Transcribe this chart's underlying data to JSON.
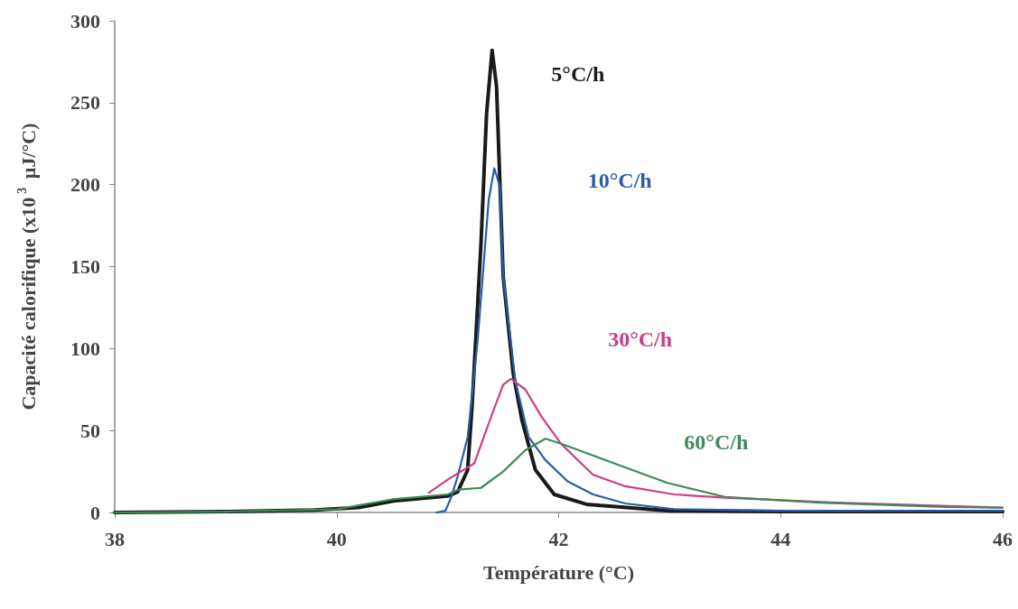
{
  "chart_data": {
    "type": "line",
    "xlabel": "Température (°C)",
    "ylabel": "Capacité calorifique (x10$^{3}$ µJ/°C)",
    "xlim": [
      38,
      46
    ],
    "xticks": [
      38,
      40,
      42,
      44,
      46
    ],
    "ylim": [
      0,
      300
    ],
    "yticks": [
      0,
      50,
      100,
      150,
      200,
      250,
      300
    ],
    "grid": false,
    "legend": false,
    "marker": "none",
    "line_style": "solid",
    "series": [
      {
        "name": "5°C/h",
        "color": "#1a1a1a",
        "x": [
          38,
          39,
          39.8,
          40.2,
          40.51,
          41.0,
          41.09,
          41.18,
          41.22,
          41.3,
          41.35,
          41.4,
          41.44,
          41.5,
          41.59,
          41.67,
          41.79,
          41.96,
          42.25,
          43.0,
          44.0,
          46
        ],
        "values": [
          0,
          0.5,
          1.5,
          3,
          7,
          10,
          12.6,
          26,
          65,
          164,
          243,
          282,
          260,
          144,
          85,
          56,
          26,
          11,
          5,
          1,
          0.5,
          0.5
        ]
      },
      {
        "name": "10°C/h",
        "color": "#2a5caa",
        "x": [
          40.9,
          40.98,
          41.03,
          41.09,
          41.18,
          41.27,
          41.37,
          41.42,
          41.47,
          41.5,
          41.61,
          41.73,
          41.88,
          42.08,
          42.31,
          42.6,
          43.04,
          44.0,
          46
        ],
        "values": [
          0,
          1,
          9,
          22,
          46,
          105,
          191,
          210,
          199,
          144,
          80,
          46,
          32,
          19,
          11,
          5.5,
          2,
          1,
          1
        ]
      },
      {
        "name": "30°C/h",
        "color": "#cc3d86",
        "x": [
          40.83,
          41.0,
          41.24,
          41.4,
          41.5,
          41.57,
          41.7,
          41.85,
          42.02,
          42.31,
          42.6,
          43.04,
          43.5,
          44.5,
          46
        ],
        "values": [
          12,
          20,
          30,
          60,
          78,
          81.5,
          75,
          58,
          42,
          23,
          16,
          11,
          9,
          6,
          3
        ]
      },
      {
        "name": "60°C/h",
        "color": "#3d8a5a",
        "x": [
          38,
          39,
          40,
          40.5,
          41.0,
          41.1,
          41.3,
          41.5,
          41.7,
          41.88,
          42.02,
          42.46,
          42.98,
          43.5,
          44.35,
          45.5,
          46
        ],
        "values": [
          0,
          0.5,
          2,
          8,
          11,
          14,
          15,
          25,
          38,
          45,
          42,
          31,
          18,
          9.5,
          6,
          3.3,
          3
        ]
      }
    ]
  }
}
